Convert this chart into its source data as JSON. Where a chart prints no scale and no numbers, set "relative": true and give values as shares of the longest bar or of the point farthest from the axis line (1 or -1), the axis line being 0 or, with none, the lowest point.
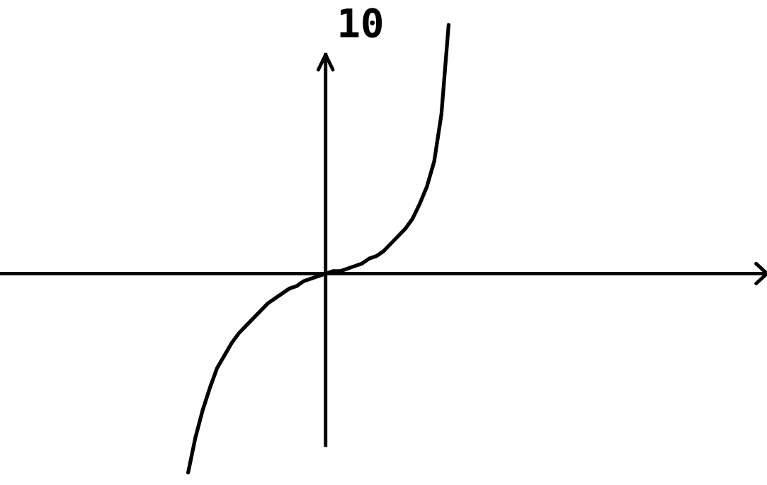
{
  "chart_data": {
    "type": "line",
    "title": "10",
    "relative": true,
    "legend": false,
    "marker": "none",
    "line_style": "solid",
    "categories": [
      null,
      null,
      null,
      null,
      null,
      null,
      null,
      null,
      null,
      null,
      null,
      null,
      null,
      null,
      null,
      null,
      null,
      null,
      null,
      null,
      null,
      null,
      null,
      null,
      null,
      null,
      null,
      null,
      null,
      null,
      null,
      null,
      null,
      null,
      null,
      null,
      null
    ],
    "series": [
      {
        "color": "#000000",
        "values": [
          -0.8,
          -0.66,
          -0.55,
          -0.46,
          -0.38,
          -0.33,
          -0.28,
          -0.24,
          -0.21,
          -0.18,
          -0.15,
          -0.12,
          -0.1,
          -0.08,
          -0.06,
          -0.05,
          -0.03,
          -0.02,
          -0.01,
          0.0,
          0.01,
          0.01,
          0.02,
          0.03,
          0.04,
          0.06,
          0.07,
          0.09,
          0.12,
          0.15,
          0.18,
          0.22,
          0.28,
          0.35,
          0.45,
          0.64,
          1.0
        ]
      }
    ]
  }
}
